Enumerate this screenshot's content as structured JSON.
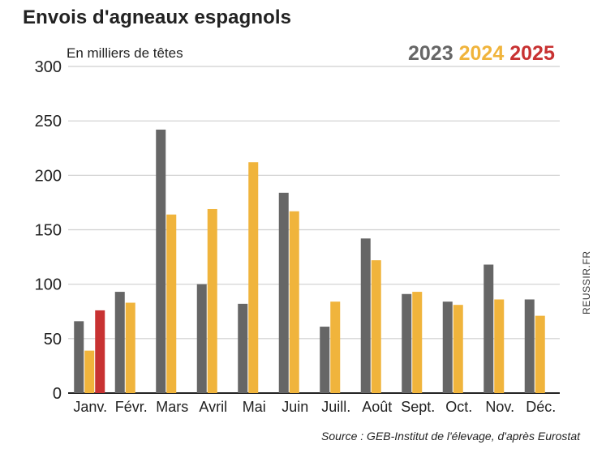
{
  "header": {
    "title": "Envois d'agneaux espagnols",
    "subtitle": "En milliers de têtes"
  },
  "colors": {
    "2023": "#666666",
    "2024": "#F0B43C",
    "2025": "#C83232",
    "grid": "#CFCFCF",
    "axis": "#222222"
  },
  "legend": {
    "items": [
      "2023",
      "2024",
      "2025"
    ]
  },
  "footer": {
    "source": "Source : GEB-Institut de l'élevage, d'après Eurostat",
    "watermark": "REUSSIR.FR"
  },
  "chart_data": {
    "type": "bar",
    "title": "Envois d'agneaux espagnols",
    "ylabel": "En milliers de têtes",
    "xlabel": "",
    "ylim": [
      0,
      300
    ],
    "yticks": [
      0,
      50,
      100,
      150,
      200,
      250,
      300
    ],
    "grid": true,
    "legend_position": "top-right",
    "categories": [
      "Janv.",
      "Févr.",
      "Mars",
      "Avril",
      "Mai",
      "Juin",
      "Juill.",
      "Août",
      "Sept.",
      "Oct.",
      "Nov.",
      "Déc."
    ],
    "series": [
      {
        "name": "2023",
        "values": [
          66,
          93,
          242,
          100,
          82,
          184,
          61,
          142,
          91,
          84,
          118,
          86
        ]
      },
      {
        "name": "2024",
        "values": [
          39,
          83,
          164,
          169,
          212,
          167,
          84,
          122,
          93,
          81,
          86,
          71
        ]
      },
      {
        "name": "2025",
        "values": [
          76,
          null,
          null,
          null,
          null,
          null,
          null,
          null,
          null,
          null,
          null,
          null
        ]
      }
    ]
  }
}
